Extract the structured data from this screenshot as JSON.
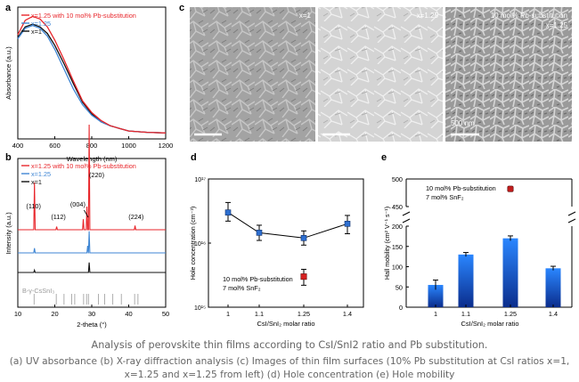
{
  "panel_letters": [
    "a",
    "b",
    "c",
    "d",
    "e"
  ],
  "sem": {
    "tiles": [
      {
        "label": "x=1"
      },
      {
        "label": "x=1.25"
      },
      {
        "label": "10 mol% Pb-substitution\nx=1.25",
        "scale_bar": "500 nm"
      }
    ]
  },
  "caption": {
    "title": "Analysis of perovskite thin films according to CsI/SnI2 ratio and Pb substitution.",
    "body": "(a) UV absorbance (b) X-ray diffraction analysis (c) Images of thin film surfaces (10% Pb substitution at CsI ratios x=1, x=1.25 and x=1.25 from left) (d) Hole concentration (e) Hole mobility"
  },
  "colors": {
    "red": "#e8262b",
    "blue": "#3f86d4",
    "black": "#111111",
    "marker": "#2e6fd0",
    "bar": "#1f73e8"
  },
  "chart_data": [
    {
      "id": "a",
      "type": "line",
      "xlabel": "Wavelength (nm)",
      "ylabel": "Absorbance (a.u.)",
      "xlim": [
        400,
        1200
      ],
      "xticks": [
        400,
        600,
        800,
        1000,
        1200
      ],
      "series": [
        {
          "name": "x=1.25 with 10 mol% Pb-substitution",
          "color": "#e8262b",
          "x": [
            400,
            440,
            480,
            520,
            560,
            600,
            650,
            700,
            750,
            800,
            850,
            900,
            950,
            1000,
            1100,
            1200
          ],
          "y": [
            0.79,
            0.9,
            0.93,
            0.91,
            0.85,
            0.75,
            0.6,
            0.44,
            0.29,
            0.2,
            0.14,
            0.1,
            0.08,
            0.06,
            0.05,
            0.045
          ]
        },
        {
          "name": "x=1.25",
          "color": "#3f86d4",
          "x": [
            400,
            440,
            480,
            520,
            560,
            600,
            650,
            700,
            750,
            800,
            850,
            900,
            950,
            1000,
            1100,
            1200
          ],
          "y": [
            0.76,
            0.84,
            0.86,
            0.84,
            0.78,
            0.68,
            0.53,
            0.38,
            0.26,
            0.18,
            0.13,
            0.1,
            0.08,
            0.06,
            0.05,
            0.045
          ]
        },
        {
          "name": "x=1",
          "color": "#111111",
          "x": [
            400,
            440,
            480,
            520,
            560,
            600,
            650,
            700,
            750,
            800,
            850,
            900,
            950,
            1000,
            1100,
            1200
          ],
          "y": [
            0.77,
            0.85,
            0.87,
            0.85,
            0.8,
            0.71,
            0.57,
            0.42,
            0.28,
            0.19,
            0.13,
            0.1,
            0.08,
            0.06,
            0.05,
            0.045
          ]
        }
      ]
    },
    {
      "id": "b",
      "type": "line",
      "xlabel": "2-theta (°)",
      "ylabel": "Intensity (a.u.)",
      "xlim": [
        10,
        50
      ],
      "xticks": [
        10,
        20,
        30,
        40,
        50
      ],
      "legend": [
        "x=1.25 with 10 mol% Pb-substitution",
        "x=1.25",
        "x=1"
      ],
      "peak_labels": [
        {
          "text": "(110)",
          "x": 14.5
        },
        {
          "text": "(112)",
          "x": 20.5
        },
        {
          "text": "(004)",
          "x": 27.2
        },
        {
          "text": "(220)",
          "x": 29.4
        },
        {
          "text": "(224)",
          "x": 42.0
        }
      ],
      "reference": {
        "name": "B-γ-CsSnI₃",
        "positions": [
          14.4,
          20.4,
          22.5,
          24.6,
          25.4,
          27.8,
          28.6,
          29.1,
          31.8,
          33.5,
          35.7,
          38.0,
          41.6,
          42.5
        ]
      },
      "series": [
        {
          "name": "x=1.25 with 10 mol% Pb-substitution",
          "color": "#e8262b",
          "peaks": [
            [
              14.5,
              0.45
            ],
            [
              20.5,
              0.03
            ],
            [
              27.7,
              0.1
            ],
            [
              28.7,
              0.22
            ],
            [
              29.3,
              1.0
            ],
            [
              41.7,
              0.04
            ]
          ]
        },
        {
          "name": "x=1.25",
          "color": "#3f86d4",
          "peaks": [
            [
              14.5,
              0.12
            ],
            [
              28.9,
              0.18
            ],
            [
              29.3,
              0.55
            ]
          ]
        },
        {
          "name": "x=1",
          "color": "#111111",
          "peaks": [
            [
              14.5,
              0.08
            ],
            [
              29.3,
              0.35
            ]
          ]
        }
      ]
    },
    {
      "id": "d",
      "type": "scatter",
      "xlabel": "CsI/SnI₂ molar ratio",
      "ylabel": "Hole concentration (cm⁻³)",
      "yscale": "log",
      "ylim": [
        1000000000000000.0,
        1e+17
      ],
      "ytick_labels": [
        "10¹⁵",
        "10¹⁶",
        "10¹⁷"
      ],
      "categories": [
        "1",
        "1.1",
        "1.25",
        "1.4"
      ],
      "series": [
        {
          "name": "",
          "values": [
            3e+16,
            1.45e+16,
            1.2e+16,
            2e+16
          ],
          "err": [
            [
              2.2e+16,
              4.3e+16
            ],
            [
              1.1e+16,
              1.9e+16
            ],
            [
              9300000000000000.0,
              1.55e+16
            ],
            [
              1.4e+16,
              2.7e+16
            ]
          ]
        }
      ],
      "annotation": {
        "text": "10 mol% Pb-substitution",
        "text2": "7 mol% SnF₂",
        "category": "1.25",
        "value": 3000000000000000.0,
        "err": [
          2200000000000000.0,
          3900000000000000.0
        ]
      }
    },
    {
      "id": "e",
      "type": "bar",
      "xlabel": "CsI/SnI₂ molar ratio",
      "ylabel": "Hall mobility (cm² V⁻¹ s⁻¹)",
      "y_axis_break": [
        200,
        450
      ],
      "yticks_lower": [
        0,
        50,
        100,
        150,
        200
      ],
      "yticks_upper": [
        450,
        500
      ],
      "categories": [
        "1",
        "1.1",
        "1.25",
        "1.4"
      ],
      "values": [
        55,
        130,
        170,
        96
      ],
      "errors": [
        12,
        5,
        6,
        5
      ],
      "annotation": {
        "text": "10 mol% Pb-substitution",
        "text2": "7 mol% SnF₂",
        "value": 482
      }
    }
  ]
}
